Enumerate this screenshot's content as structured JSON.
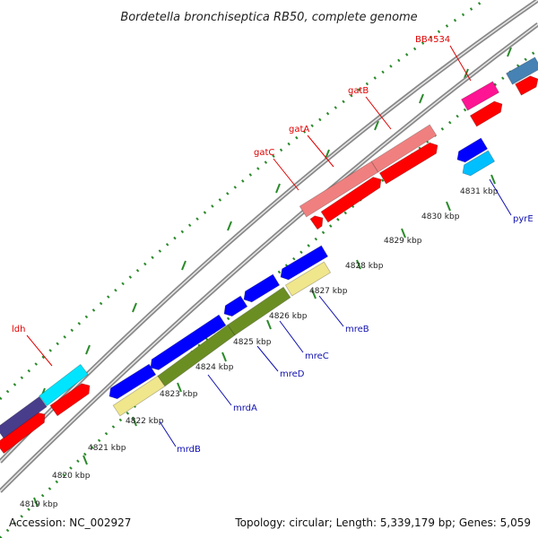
{
  "title": "Bordetella bronchiseptica RB50, complete genome",
  "footer": {
    "accession": "Accession: NC_002927",
    "summary": "Topology: circular; Length: 5,339,179 bp; Genes: 5,059"
  },
  "ticks": [
    {
      "label": "4819 kbp"
    },
    {
      "label": "4820 kbp"
    },
    {
      "label": "4821 kbp"
    },
    {
      "label": "4822 kbp"
    },
    {
      "label": "4823 kbp"
    },
    {
      "label": "4824 kbp"
    },
    {
      "label": "4825 kbp"
    },
    {
      "label": "4826 kbp"
    },
    {
      "label": "4827 kbp"
    },
    {
      "label": "4828 kbp"
    },
    {
      "label": "4829 kbp"
    },
    {
      "label": "4830 kbp"
    },
    {
      "label": "4831 kbp"
    }
  ],
  "labels_top": [
    {
      "name": "ldh",
      "color": "#e00000"
    },
    {
      "name": "gatC",
      "color": "#e00000"
    },
    {
      "name": "gatA",
      "color": "#e00000"
    },
    {
      "name": "gatB",
      "color": "#e00000"
    },
    {
      "name": "BB4534",
      "color": "#e00000"
    }
  ],
  "labels_bottom": [
    {
      "name": "mrdB",
      "color": "#1010b0"
    },
    {
      "name": "mrdA",
      "color": "#1010b0"
    },
    {
      "name": "mreD",
      "color": "#1010b0"
    },
    {
      "name": "mreC",
      "color": "#1010b0"
    },
    {
      "name": "mreB",
      "color": "#1010b0"
    },
    {
      "name": "pyrE",
      "color": "#1010b0"
    }
  ],
  "colors": {
    "backbone": "#8a8a8a",
    "tick_dot": "#2a8a2a",
    "red": "#ff0000",
    "pink": "#f08080",
    "magenta": "#ff1493",
    "cyan": "#00e5ff",
    "skyblue": "#00bfff",
    "blue": "#0000ff",
    "olive": "#6b8e23",
    "khaki": "#f0e68c",
    "slate": "#483d8b",
    "steel": "#4682b4"
  }
}
